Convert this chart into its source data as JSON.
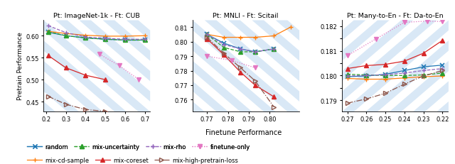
{
  "panel1": {
    "title": "Pt: ImageNet-1k - Ft: CUB",
    "xlim": [
      0.185,
      0.725
    ],
    "ylim": [
      0.428,
      0.636
    ],
    "xticks": [
      0.2,
      0.3,
      0.4,
      0.5,
      0.6,
      0.7
    ],
    "yticks": [
      0.45,
      0.5,
      0.55,
      0.6
    ],
    "series": [
      {
        "name": "random",
        "x": [
          0.21,
          0.3,
          0.4,
          0.5,
          0.6,
          0.7
        ],
        "y": [
          0.608,
          0.6,
          0.595,
          0.592,
          0.59,
          0.59
        ],
        "color": "#1f77b4",
        "marker": "x",
        "ls": "-"
      },
      {
        "name": "mix-cd-sample",
        "x": [
          0.21,
          0.3,
          0.4,
          0.5,
          0.6,
          0.7
        ],
        "y": [
          0.61,
          0.605,
          0.601,
          0.599,
          0.599,
          0.6
        ],
        "color": "#ff7f0e",
        "marker": "+",
        "ls": "-"
      },
      {
        "name": "mix-uncertainty",
        "x": [
          0.21,
          0.3,
          0.4,
          0.5,
          0.6,
          0.7
        ],
        "y": [
          0.609,
          0.6,
          0.595,
          0.592,
          0.59,
          0.59
        ],
        "color": "#2ca02c",
        "marker": "^",
        "ls": "--"
      },
      {
        "name": "mix-coreset",
        "x": [
          0.21,
          0.3,
          0.4,
          0.5
        ],
        "y": [
          0.555,
          0.527,
          0.51,
          0.5
        ],
        "color": "#d62728",
        "marker": "^",
        "ls": "-"
      },
      {
        "name": "mix-rho",
        "x": [
          0.21,
          0.3,
          0.4,
          0.5,
          0.6,
          0.7
        ],
        "y": [
          0.623,
          0.607,
          0.597,
          0.594,
          0.592,
          0.592
        ],
        "color": "#9467bd",
        "marker": "+",
        "ls": "--"
      },
      {
        "name": "mix-high-pretrain-loss",
        "x": [
          0.21,
          0.3,
          0.4,
          0.5
        ],
        "y": [
          0.462,
          0.444,
          0.432,
          0.428
        ],
        "color": "#8c564b",
        "marker": ">",
        "ls": "-."
      },
      {
        "name": "finetune-only",
        "x": [
          0.47,
          0.57,
          0.67
        ],
        "y": [
          0.558,
          0.532,
          0.5
        ],
        "color": "#e377c2",
        "marker": "v",
        "ls": ":"
      }
    ]
  },
  "panel2": {
    "title": "Pt: MNLI - Ft: Scitail",
    "xlim": [
      0.763,
      0.814
    ],
    "ylim": [
      0.752,
      0.815
    ],
    "xticks": [
      0.77,
      0.78,
      0.79,
      0.8
    ],
    "yticks": [
      0.76,
      0.77,
      0.78,
      0.79,
      0.8,
      0.81
    ],
    "series": [
      {
        "name": "random",
        "x": [
          0.77,
          0.778,
          0.786,
          0.793,
          0.802
        ],
        "y": [
          0.805,
          0.799,
          0.795,
          0.793,
          0.795
        ],
        "color": "#1f77b4",
        "marker": "x",
        "ls": "-"
      },
      {
        "name": "mix-cd-sample",
        "x": [
          0.77,
          0.778,
          0.786,
          0.793,
          0.802,
          0.81
        ],
        "y": [
          0.805,
          0.803,
          0.803,
          0.803,
          0.804,
          0.81
        ],
        "color": "#ff7f0e",
        "marker": "+",
        "ls": "-"
      },
      {
        "name": "mix-uncertainty",
        "x": [
          0.77,
          0.778,
          0.786,
          0.793,
          0.802
        ],
        "y": [
          0.805,
          0.796,
          0.793,
          0.793,
          0.795
        ],
        "color": "#2ca02c",
        "marker": "^",
        "ls": "--"
      },
      {
        "name": "mix-coreset",
        "x": [
          0.77,
          0.778,
          0.786,
          0.793,
          0.802
        ],
        "y": [
          0.802,
          0.791,
          0.779,
          0.77,
          0.762
        ],
        "color": "#d62728",
        "marker": "^",
        "ls": "-"
      },
      {
        "name": "mix-rho",
        "x": [
          0.77,
          0.778,
          0.786,
          0.793,
          0.802
        ],
        "y": [
          0.805,
          0.798,
          0.795,
          0.793,
          0.795
        ],
        "color": "#9467bd",
        "marker": "+",
        "ls": "--"
      },
      {
        "name": "mix-high-pretrain-loss",
        "x": [
          0.77,
          0.778,
          0.786,
          0.793,
          0.802
        ],
        "y": [
          0.803,
          0.792,
          0.782,
          0.773,
          0.755
        ],
        "color": "#8c564b",
        "marker": ">",
        "ls": "-."
      },
      {
        "name": "finetune-only",
        "x": [
          0.77,
          0.782,
          0.793
        ],
        "y": [
          0.79,
          0.787,
          0.782
        ],
        "color": "#e377c2",
        "marker": "v",
        "ls": ":"
      }
    ]
  },
  "panel3": {
    "title": "Pt: Many-to-En - Ft: Da-to-En",
    "xlim": [
      0.273,
      0.217
    ],
    "ylim": [
      0.17855,
      0.18225
    ],
    "xticks": [
      0.27,
      0.26,
      0.25,
      0.24,
      0.23,
      0.22
    ],
    "yticks": [
      0.179,
      0.1795,
      0.18,
      0.1805,
      0.181,
      0.1815,
      0.182
    ],
    "ytick_labels": [
      "0.179",
      "",
      "0.180",
      "",
      "0.181",
      "",
      "0.182"
    ],
    "series": [
      {
        "name": "random",
        "x": [
          0.27,
          0.26,
          0.25,
          0.24,
          0.23,
          0.22
        ],
        "y": [
          0.17995,
          0.17998,
          0.18005,
          0.1802,
          0.18035,
          0.18042
        ],
        "color": "#1f77b4",
        "marker": "x",
        "ls": "-"
      },
      {
        "name": "mix-cd-sample",
        "x": [
          0.27,
          0.26,
          0.25,
          0.24,
          0.23,
          0.22
        ],
        "y": [
          0.17988,
          0.17985,
          0.17985,
          0.1799,
          0.17995,
          0.17998
        ],
        "color": "#ff7f0e",
        "marker": "+",
        "ls": "-"
      },
      {
        "name": "mix-uncertainty",
        "x": [
          0.27,
          0.26,
          0.25,
          0.24,
          0.23,
          0.22
        ],
        "y": [
          0.18005,
          0.18002,
          0.18,
          0.18,
          0.18002,
          0.1801
        ],
        "color": "#2ca02c",
        "marker": "^",
        "ls": "--"
      },
      {
        "name": "mix-coreset",
        "x": [
          0.27,
          0.26,
          0.25,
          0.24,
          0.23,
          0.22
        ],
        "y": [
          0.18028,
          0.1804,
          0.18045,
          0.18058,
          0.1809,
          0.18142
        ],
        "color": "#d62728",
        "marker": "^",
        "ls": "-"
      },
      {
        "name": "mix-rho",
        "x": [
          0.27,
          0.26,
          0.25,
          0.24,
          0.23,
          0.22
        ],
        "y": [
          0.17998,
          0.18,
          0.18003,
          0.1801,
          0.1802,
          0.18028
        ],
        "color": "#9467bd",
        "marker": "+",
        "ls": "--"
      },
      {
        "name": "mix-high-pretrain-loss",
        "x": [
          0.27,
          0.26,
          0.25,
          0.24,
          0.23,
          0.22
        ],
        "y": [
          0.17888,
          0.17905,
          0.17928,
          0.17965,
          0.17998,
          0.1802
        ],
        "color": "#8c564b",
        "marker": ">",
        "ls": "-."
      },
      {
        "name": "finetune-only",
        "x": [
          0.27,
          0.255,
          0.24,
          0.228,
          0.22
        ],
        "y": [
          0.1808,
          0.18148,
          0.18215,
          0.1822,
          0.18218
        ],
        "color": "#e377c2",
        "marker": "v",
        "ls": ":"
      }
    ]
  },
  "ylabel": "Pretrain Performance",
  "xlabel": "Finetune Performance",
  "stripe_color": "#d9e8f6",
  "legend_row1": [
    {
      "label": "random",
      "color": "#1f77b4",
      "marker": "x",
      "ls": "-"
    },
    {
      "label": "mix-uncertainty",
      "color": "#2ca02c",
      "marker": "^",
      "ls": "--"
    },
    {
      "label": "mix-rho",
      "color": "#9467bd",
      "marker": "+",
      "ls": "--"
    },
    {
      "label": "finetune-only",
      "color": "#e377c2",
      "marker": "v",
      "ls": ":"
    }
  ],
  "legend_row2": [
    {
      "label": "mix-cd-sample",
      "color": "#ff7f0e",
      "marker": "+",
      "ls": "-"
    },
    {
      "label": "mix-coreset",
      "color": "#d62728",
      "marker": "^",
      "ls": "-"
    },
    {
      "label": "mix-high-pretrain-loss",
      "color": "#8c564b",
      "marker": ">",
      "ls": "-."
    }
  ]
}
